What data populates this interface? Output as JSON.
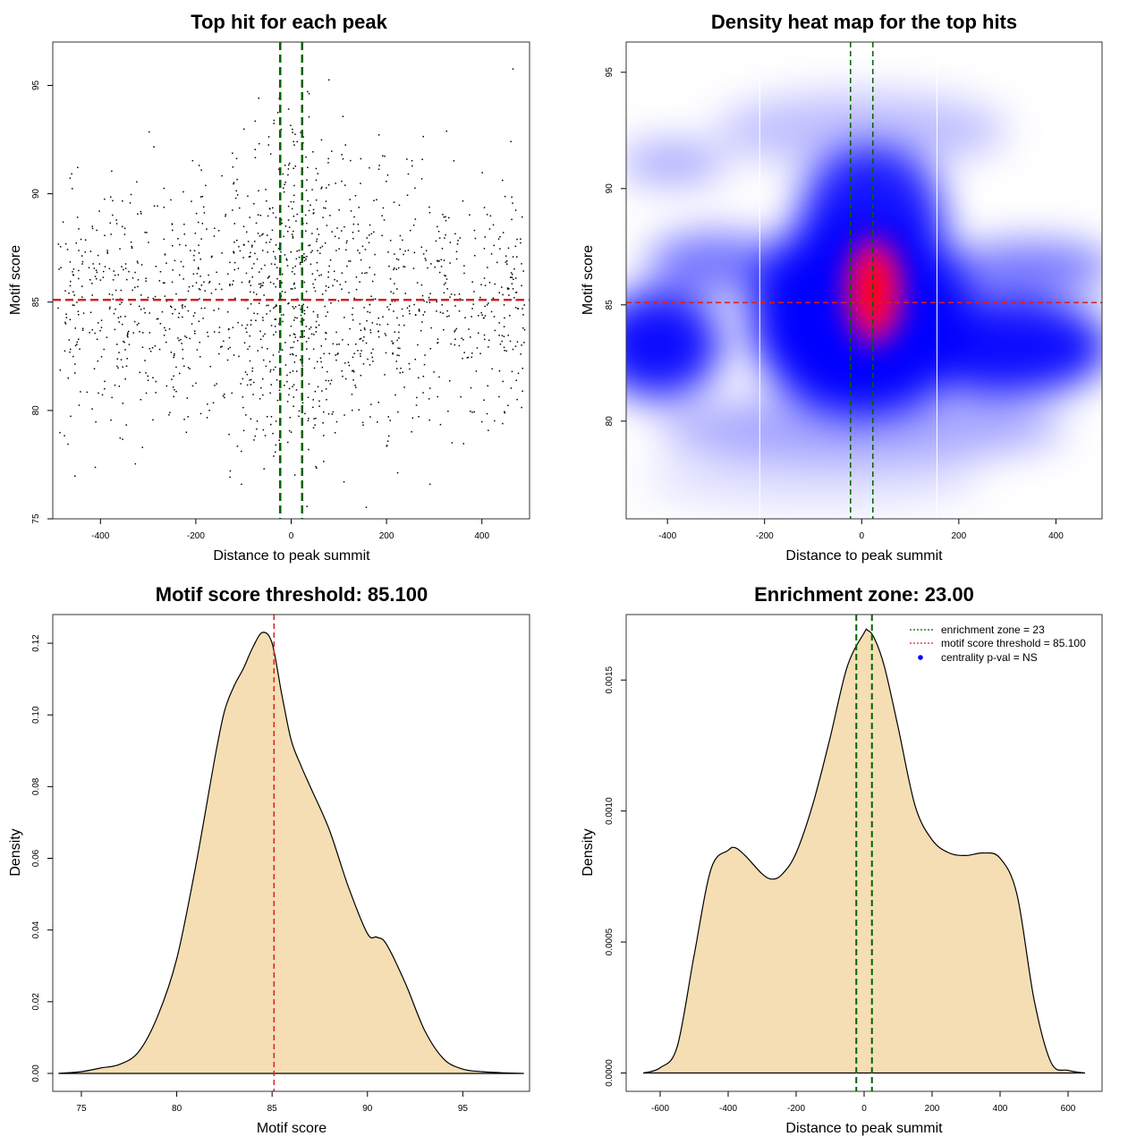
{
  "colors": {
    "zone_line": "#006400",
    "threshold_line": "#d62020",
    "density_fill": "#f5deb3",
    "heat_low": "#ffffff",
    "heat_mid": "#0000ff",
    "heat_high": "#ff0000",
    "legend_dot": "#0000ff"
  },
  "chart_data": [
    {
      "id": "scatter",
      "type": "scatter",
      "title": "Top hit for each peak",
      "xlabel": "Distance to peak summit",
      "ylabel": "Motif score",
      "xlim": [
        -500,
        500
      ],
      "ylim": [
        75,
        97
      ],
      "xticks": [
        -400,
        -200,
        0,
        200,
        400
      ],
      "yticks": [
        75,
        80,
        85,
        90,
        95
      ],
      "threshold": 85.1,
      "zone": [
        -23,
        23
      ],
      "n_points": 1500,
      "point_seed": 7,
      "score_mean": 84.9,
      "score_sd": 3.4
    },
    {
      "id": "heatmap",
      "type": "heatmap",
      "title": "Density heat map for the top hits",
      "xlabel": "Distance to peak summit",
      "ylabel": "Motif score",
      "xlim": [
        -485,
        495
      ],
      "ylim": [
        75.8,
        96.3
      ],
      "xticks": [
        -400,
        -200,
        0,
        200,
        400
      ],
      "yticks": [
        80,
        85,
        90,
        95
      ],
      "threshold": 85.1,
      "zone": [
        -23,
        23
      ],
      "bin_separators_x": [
        -210,
        155
      ],
      "hotspot": {
        "x": 25,
        "y": 85.6
      }
    },
    {
      "id": "score_density",
      "type": "area",
      "title": "Motif score threshold: 85.100",
      "xlabel": "Motif score",
      "ylabel": "Density",
      "xlim": [
        73.5,
        98.5
      ],
      "ylim": [
        -0.005,
        0.128
      ],
      "xticks": [
        75,
        80,
        85,
        90,
        95
      ],
      "yticks": [
        "0.00",
        "0.02",
        "0.04",
        "0.06",
        "0.08",
        "0.10",
        "0.12"
      ],
      "threshold": 85.1,
      "x": [
        73.8,
        75,
        76,
        77,
        78,
        79,
        80,
        81,
        82,
        82.5,
        83,
        83.5,
        84,
        84.5,
        85,
        85.5,
        86,
        86.5,
        87,
        88,
        89,
        90,
        90.5,
        91,
        92,
        93,
        94,
        95,
        96,
        97,
        98.2
      ],
      "y": [
        0,
        0.0005,
        0.0015,
        0.0025,
        0.006,
        0.016,
        0.032,
        0.058,
        0.088,
        0.101,
        0.108,
        0.113,
        0.119,
        0.123,
        0.12,
        0.106,
        0.093,
        0.086,
        0.08,
        0.068,
        0.052,
        0.039,
        0.038,
        0.036,
        0.025,
        0.012,
        0.004,
        0.0012,
        0.0005,
        0.0002,
        0
      ]
    },
    {
      "id": "distance_density",
      "type": "area",
      "title": "Enrichment zone: 23.00",
      "xlabel": "Distance to peak summit",
      "ylabel": "Density",
      "xlim": [
        -700,
        700
      ],
      "ylim": [
        -7e-05,
        0.00175
      ],
      "xticks": [
        -600,
        -400,
        -200,
        0,
        200,
        400,
        600
      ],
      "yticks": [
        "0.0000",
        "0.0005",
        "0.0010",
        "0.0015"
      ],
      "zone": [
        -23,
        23
      ],
      "x": [
        -650,
        -600,
        -550,
        -500,
        -450,
        -400,
        -380,
        -350,
        -300,
        -270,
        -240,
        -200,
        -150,
        -100,
        -50,
        0,
        10,
        30,
        60,
        100,
        150,
        200,
        250,
        300,
        350,
        400,
        450,
        500,
        550,
        600,
        650
      ],
      "y": [
        0,
        2e-05,
        0.0001,
        0.00045,
        0.00078,
        0.00085,
        0.00086,
        0.00083,
        0.00076,
        0.00074,
        0.00076,
        0.00084,
        0.00103,
        0.00128,
        0.00155,
        0.00168,
        0.00169,
        0.00166,
        0.00155,
        0.00132,
        0.00102,
        0.00089,
        0.00084,
        0.00083,
        0.00084,
        0.00082,
        0.00068,
        0.00028,
        4e-05,
        1e-05,
        0
      ]
    }
  ],
  "legend": {
    "zone_label": "enrichment zone = 23",
    "threshold_label": "motif score threshold = 85.100",
    "pval_label": "centrality p-val = NS"
  }
}
